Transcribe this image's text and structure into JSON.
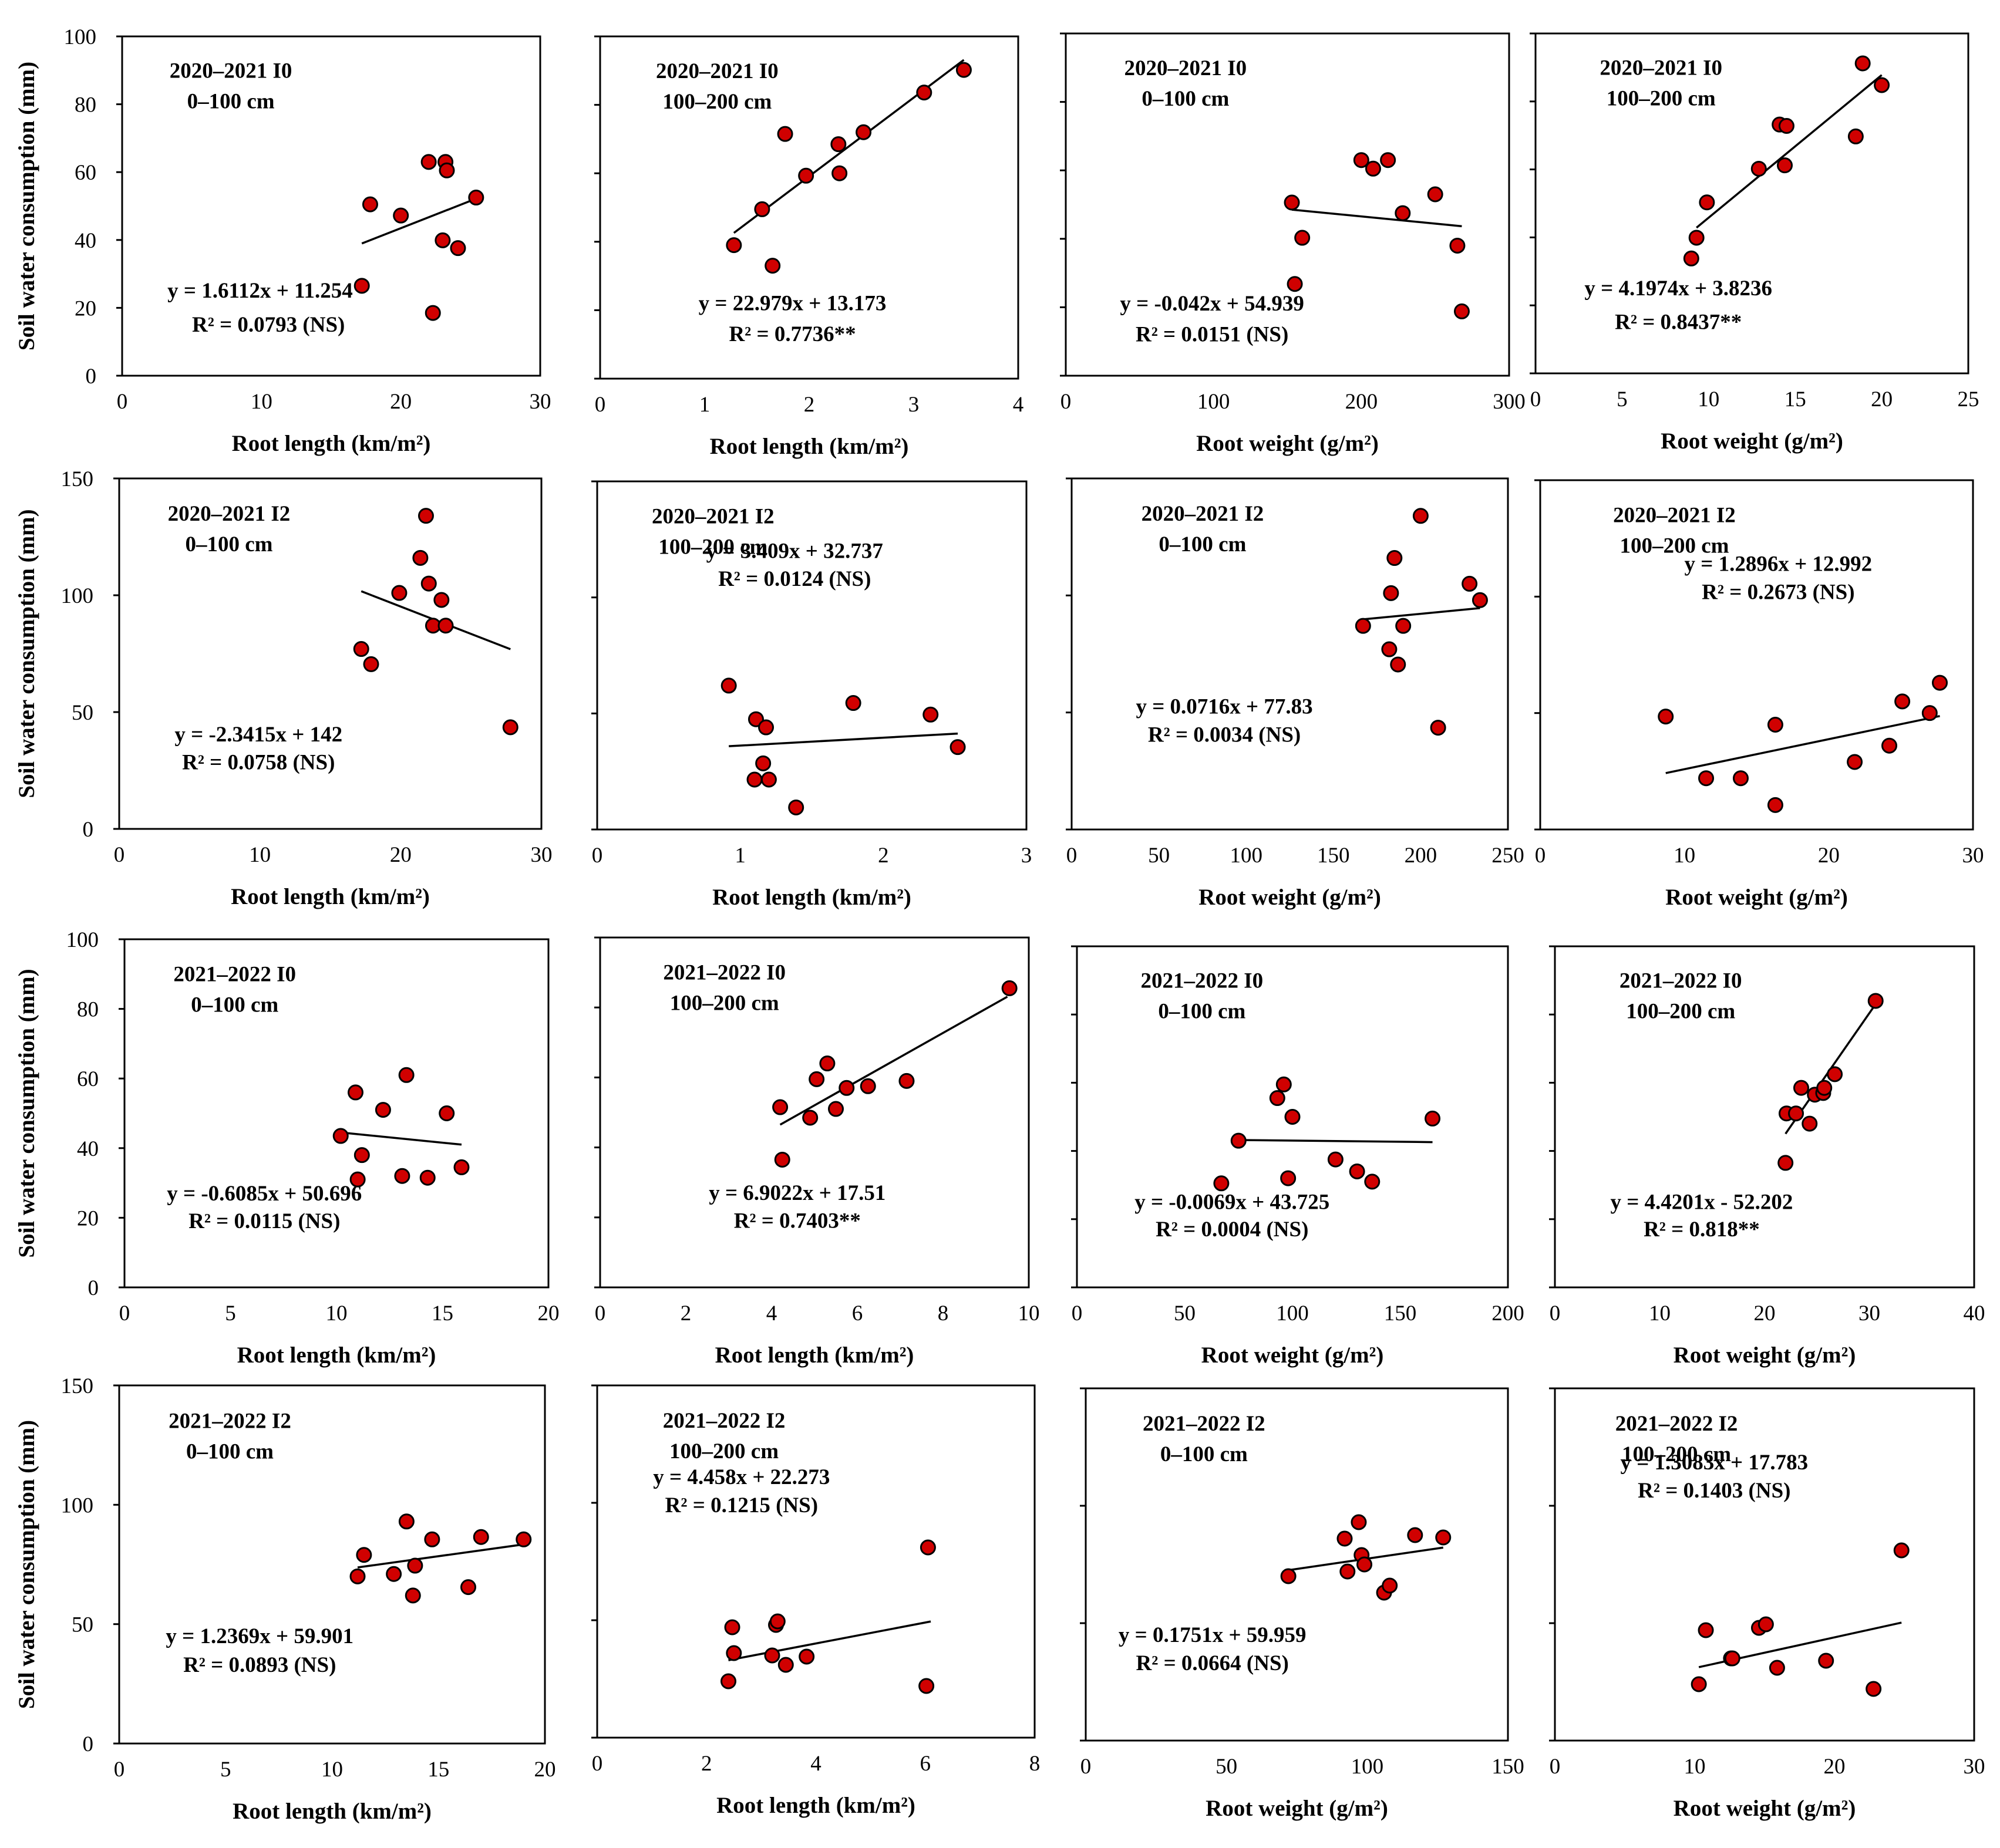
{
  "figure": {
    "ylabel": "Soil water consumption  (mm)",
    "colors": {
      "point_fill": "#d00000",
      "point_stroke": "#000000",
      "line": "#000000",
      "frame": "#000000"
    }
  },
  "chart_data": [
    {
      "type": "scatter",
      "title": "2020–2021  I0",
      "subtitle": "0–100 cm",
      "xlabel": "Root length (km/m²)",
      "xlim": [
        0,
        30
      ],
      "xticks": [
        0,
        10,
        20,
        30
      ],
      "ylim": [
        0,
        100
      ],
      "yticks": [
        0,
        20,
        40,
        60,
        80,
        100
      ],
      "show_y_tick_labels": true,
      "x": [
        17.2,
        17.8,
        20.0,
        22.0,
        22.3,
        23.0,
        23.2,
        23.3,
        24.1,
        25.4
      ],
      "y": [
        26.5,
        50.5,
        47.2,
        63.0,
        18.5,
        39.9,
        63.0,
        60.5,
        37.6,
        52.5
      ],
      "equation": "y = 1.6112x + 11.254",
      "r2": "R² = 0.0793 (NS)",
      "slope": 1.6112,
      "intercept": 11.254,
      "fit_range": [
        17.2,
        25.4
      ]
    },
    {
      "type": "scatter",
      "title": "2020–2021  I0",
      "subtitle": "100–200 cm",
      "xlabel": "Root length (km/m²)",
      "xlim": [
        0,
        4
      ],
      "xticks": [
        0,
        1,
        2,
        3,
        4
      ],
      "ylim": [
        0,
        100
      ],
      "yticks": [
        0,
        20,
        40,
        60,
        80,
        100
      ],
      "show_y_tick_labels": false,
      "x": [
        1.28,
        1.55,
        1.65,
        1.77,
        1.97,
        2.28,
        2.29,
        2.52,
        3.1,
        3.48
      ],
      "y": [
        39.0,
        49.5,
        33.0,
        71.5,
        59.3,
        68.5,
        60.0,
        72.0,
        83.6,
        90.2
      ],
      "equation": "y = 22.979x + 13.173",
      "r2": "R² = 0.7736**",
      "slope": 22.979,
      "intercept": 13.173,
      "fit_range": [
        1.28,
        3.48
      ]
    },
    {
      "type": "scatter",
      "title": "2020–2021  I0",
      "subtitle": "0–100 cm",
      "xlabel": "Root weight (g/m²)",
      "xlim": [
        0,
        300
      ],
      "xticks": [
        0,
        100,
        200,
        300
      ],
      "ylim": [
        0,
        100
      ],
      "yticks": [
        0,
        20,
        40,
        60,
        80,
        100
      ],
      "show_y_tick_labels": false,
      "x": [
        153,
        155,
        160,
        200,
        208,
        218,
        228,
        250,
        265,
        268
      ],
      "y": [
        50.6,
        26.8,
        40.3,
        63.0,
        60.5,
        63.0,
        47.5,
        53.0,
        38.0,
        18.8
      ],
      "equation": "y = -0.042x + 54.939",
      "r2": "R² = 0.0151 (NS)",
      "slope": -0.042,
      "intercept": 54.939,
      "fit_range": [
        153,
        268
      ]
    },
    {
      "type": "scatter",
      "title": "2020–2021  I0",
      "subtitle": "100–200 cm",
      "xlabel": "Root weight (g/m²)",
      "xlim": [
        0,
        25
      ],
      "xticks": [
        0,
        5,
        10,
        15,
        20,
        25
      ],
      "ylim": [
        0,
        100
      ],
      "yticks": [
        0,
        20,
        40,
        60,
        80,
        100
      ],
      "show_y_tick_labels": false,
      "x": [
        9.0,
        9.3,
        9.9,
        12.9,
        14.1,
        14.4,
        14.5,
        18.5,
        18.9,
        20.0
      ],
      "y": [
        33.8,
        39.9,
        50.3,
        60.2,
        73.2,
        61.2,
        72.8,
        69.7,
        91.2,
        84.8
      ],
      "equation": "y = 4.1974x + 3.8236",
      "r2": "R² = 0.8437**",
      "slope": 4.1974,
      "intercept": 3.8236,
      "fit_range": [
        9.3,
        20.0
      ]
    },
    {
      "type": "scatter",
      "title": "2020–2021  I2",
      "subtitle": "0–100 cm",
      "xlabel": "Root length (km/m²)",
      "xlim": [
        0,
        30
      ],
      "xticks": [
        0,
        10,
        20,
        30
      ],
      "ylim": [
        0,
        150
      ],
      "yticks": [
        0,
        50,
        100,
        150
      ],
      "show_y_tick_labels": true,
      "x": [
        17.2,
        17.9,
        19.9,
        21.4,
        21.8,
        22.0,
        22.3,
        22.9,
        23.2,
        27.8
      ],
      "y": [
        77.0,
        70.5,
        101.0,
        116.0,
        134.0,
        105.0,
        87.0,
        98.0,
        87.0,
        43.5
      ],
      "equation": "y = -2.3415x + 142",
      "r2": "R² = 0.0758 (NS)",
      "slope": -2.3415,
      "intercept": 142,
      "fit_range": [
        17.2,
        27.8
      ]
    },
    {
      "type": "scatter",
      "title": "2020–2021  I2",
      "subtitle": "100–200 cm",
      "xlabel": "Root length (km/m²)",
      "xlim": [
        0,
        3
      ],
      "xticks": [
        0,
        1,
        2,
        3
      ],
      "ylim": [
        0,
        150
      ],
      "yticks": [
        0,
        50,
        100,
        150
      ],
      "show_y_tick_labels": false,
      "x": [
        0.92,
        1.1,
        1.11,
        1.16,
        1.18,
        1.2,
        1.39,
        1.79,
        2.33,
        2.52
      ],
      "y": [
        62.0,
        21.5,
        47.5,
        28.5,
        44.0,
        21.5,
        9.5,
        54.5,
        49.5,
        35.5
      ],
      "equation": "y = 3.409x + 32.737",
      "r2": "R² = 0.0124 (NS)",
      "slope": 3.409,
      "intercept": 32.737,
      "fit_range": [
        0.92,
        2.52
      ]
    },
    {
      "type": "scatter",
      "title": "2020–2021  I2",
      "subtitle": "0–100 cm",
      "xlabel": "Root weight (g/m²)",
      "xlim": [
        0,
        250
      ],
      "xticks": [
        0,
        50,
        100,
        150,
        200,
        250
      ],
      "ylim": [
        0,
        150
      ],
      "yticks": [
        0,
        50,
        100,
        150
      ],
      "show_y_tick_labels": false,
      "x": [
        167,
        182,
        183,
        185,
        187,
        190,
        200,
        210,
        228,
        234
      ],
      "y": [
        87.0,
        77.0,
        101.0,
        116.0,
        70.5,
        87.0,
        134.0,
        43.5,
        105.0,
        98.0
      ],
      "equation": "y = 0.0716x + 77.83",
      "r2": "R² = 0.0034 (NS)",
      "slope": 0.0716,
      "intercept": 77.83,
      "fit_range": [
        167,
        234
      ]
    },
    {
      "type": "scatter",
      "title": "2020–2021  I2",
      "subtitle": "100–200 cm",
      "xlabel": "Root weight (g/m²)",
      "xlim": [
        0,
        30
      ],
      "xticks": [
        0,
        10,
        20,
        30
      ],
      "ylim": [
        0,
        150
      ],
      "yticks": [
        0,
        50,
        100,
        150
      ],
      "show_y_tick_labels": false,
      "x": [
        8.7,
        11.5,
        13.9,
        16.3,
        16.3,
        21.8,
        24.2,
        25.1,
        27.0,
        27.7
      ],
      "y": [
        48.5,
        22.0,
        22.0,
        45.0,
        10.5,
        29.0,
        36.0,
        55.0,
        50.0,
        63.0
      ],
      "equation": "y = 1.2896x + 12.992",
      "r2": "R² = 0.2673 (NS)",
      "slope": 1.2896,
      "intercept": 12.992,
      "fit_range": [
        8.7,
        27.7
      ]
    },
    {
      "type": "scatter",
      "title": "2021–2022  I0",
      "subtitle": "0–100 cm",
      "xlabel": "Root length (km/m²)",
      "xlim": [
        0,
        20
      ],
      "xticks": [
        0,
        5,
        10,
        15,
        20
      ],
      "ylim": [
        0,
        100
      ],
      "yticks": [
        0,
        20,
        40,
        60,
        80,
        100
      ],
      "show_y_tick_labels": true,
      "x": [
        10.2,
        10.9,
        11.0,
        11.2,
        12.2,
        13.1,
        13.3,
        14.3,
        15.2,
        15.9
      ],
      "y": [
        43.5,
        56.0,
        31.0,
        38.0,
        51.0,
        32.0,
        61.0,
        31.5,
        50.0,
        34.5
      ],
      "equation": "y = -0.6085x + 50.696",
      "r2": "R² = 0.0115 (NS)",
      "slope": -0.6085,
      "intercept": 50.696,
      "fit_range": [
        10.2,
        15.9
      ]
    },
    {
      "type": "scatter",
      "title": "2021–2022  I0",
      "subtitle": "100–200 cm",
      "xlabel": "Root length (km/m²)",
      "xlim": [
        0,
        10
      ],
      "xticks": [
        0,
        2,
        4,
        6,
        8,
        10
      ],
      "ylim": [
        0,
        100
      ],
      "yticks": [
        0,
        20,
        40,
        60,
        80,
        100
      ],
      "show_y_tick_labels": false,
      "x": [
        4.2,
        4.25,
        4.9,
        5.05,
        5.3,
        5.5,
        5.75,
        6.25,
        7.15,
        9.55
      ],
      "y": [
        51.5,
        36.5,
        48.5,
        59.5,
        64.0,
        51.0,
        57.0,
        57.5,
        59.0,
        85.5
      ],
      "equation": "y = 6.9022x + 17.51",
      "r2": "R² = 0.7403**",
      "slope": 6.9022,
      "intercept": 17.51,
      "fit_range": [
        4.2,
        9.5
      ]
    },
    {
      "type": "scatter",
      "title": "2021–2022  I0",
      "subtitle": "0–100 cm",
      "xlabel": "Root weight (g/m²)",
      "xlim": [
        0,
        200
      ],
      "xticks": [
        0,
        50,
        100,
        150,
        200
      ],
      "ylim": [
        0,
        100
      ],
      "yticks": [
        0,
        20,
        40,
        60,
        80,
        100
      ],
      "show_y_tick_labels": false,
      "x": [
        67,
        75,
        93,
        96,
        98,
        100,
        120,
        130,
        137,
        165
      ],
      "y": [
        30.5,
        43.0,
        55.5,
        59.5,
        32.0,
        50.0,
        37.5,
        34.0,
        31.0,
        49.5
      ],
      "equation": "y = -0.0069x + 43.725",
      "r2": "R² = 0.0004 (NS)",
      "slope": -0.0069,
      "intercept": 43.725,
      "fit_range": [
        75,
        165
      ]
    },
    {
      "type": "scatter",
      "title": "2021–2022  I0",
      "subtitle": "100–200 cm",
      "xlabel": "Root weight (g/m²)",
      "xlim": [
        0,
        40
      ],
      "xticks": [
        0,
        10,
        20,
        30,
        40
      ],
      "ylim": [
        0,
        100
      ],
      "yticks": [
        0,
        20,
        40,
        60,
        80,
        100
      ],
      "show_y_tick_labels": false,
      "x": [
        22.0,
        22.1,
        23.0,
        23.5,
        24.3,
        24.8,
        25.6,
        25.7,
        26.7,
        30.6
      ],
      "y": [
        36.5,
        51.0,
        51.0,
        58.5,
        48.0,
        56.5,
        57.0,
        58.5,
        62.5,
        84.0
      ],
      "equation": "y = 4.4201x - 52.202",
      "r2": "R² = 0.818**",
      "slope": 4.4201,
      "intercept": -52.202,
      "fit_range": [
        22.0,
        30.6
      ]
    },
    {
      "type": "scatter",
      "title": "2021–2022  I2",
      "subtitle": "0–100 cm",
      "xlabel": "Root length (km/m²)",
      "xlim": [
        0,
        20
      ],
      "xticks": [
        0,
        5,
        10,
        15,
        20
      ],
      "ylim": [
        0,
        150
      ],
      "yticks": [
        0,
        50,
        100,
        150
      ],
      "show_y_tick_labels": true,
      "x": [
        11.2,
        11.5,
        12.9,
        13.5,
        13.8,
        13.9,
        14.7,
        16.4,
        17.0,
        19.0
      ],
      "y": [
        70.0,
        79.0,
        71.0,
        93.0,
        62.0,
        74.5,
        85.5,
        65.5,
        86.5,
        85.5
      ],
      "equation": "y = 1.2369x + 59.901",
      "r2": "R² = 0.0893 (NS)",
      "slope": 1.2369,
      "intercept": 59.901,
      "fit_range": [
        11.2,
        19.0
      ]
    },
    {
      "type": "scatter",
      "title": "2021–2022  I2",
      "subtitle": "100–200 cm",
      "xlabel": "Root length (km/m²)",
      "xlim": [
        0,
        8
      ],
      "xticks": [
        0,
        2,
        4,
        6,
        8
      ],
      "ylim": [
        0,
        150
      ],
      "yticks": [
        0,
        50,
        100,
        150
      ],
      "show_y_tick_labels": false,
      "x": [
        2.4,
        2.47,
        2.5,
        3.2,
        3.27,
        3.3,
        3.45,
        3.83,
        6.02,
        6.05
      ],
      "y": [
        24.0,
        47.0,
        36.0,
        35.0,
        48.0,
        49.5,
        31.0,
        34.5,
        22.0,
        81.0
      ],
      "equation": "y = 4.458x + 22.273",
      "r2": "R² = 0.1215 (NS)",
      "slope": 4.458,
      "intercept": 22.273,
      "fit_range": [
        2.4,
        6.1
      ]
    },
    {
      "type": "scatter",
      "title": "2021–2022  I2",
      "subtitle": "0–100 cm",
      "xlabel": "Root weight (g/m²)",
      "xlim": [
        0,
        150
      ],
      "xticks": [
        0,
        50,
        100,
        150
      ],
      "ylim": [
        0,
        150
      ],
      "yticks": [
        0,
        50,
        100,
        150
      ],
      "show_y_tick_labels": false,
      "x": [
        72,
        92,
        93,
        97,
        98,
        99,
        106,
        108,
        117,
        127
      ],
      "y": [
        70.0,
        86.0,
        72.0,
        93.0,
        79.0,
        75.0,
        63.0,
        66.0,
        87.5,
        86.5
      ],
      "equation": "y = 0.1751x + 59.959",
      "r2": "R² = 0.0664 (NS)",
      "slope": 0.1751,
      "intercept": 59.959,
      "fit_range": [
        72,
        127
      ]
    },
    {
      "type": "scatter",
      "title": "2021–2022  I2",
      "subtitle": "100–200 cm",
      "xlabel": "Root weight (g/m²)",
      "xlim": [
        0,
        30
      ],
      "xticks": [
        0,
        10,
        20,
        30
      ],
      "ylim": [
        0,
        150
      ],
      "yticks": [
        0,
        50,
        100,
        150
      ],
      "show_y_tick_labels": false,
      "x": [
        10.3,
        10.8,
        12.6,
        12.7,
        14.6,
        15.1,
        15.9,
        19.4,
        22.8,
        24.8
      ],
      "y": [
        24.0,
        47.0,
        35.0,
        35.0,
        48.0,
        49.5,
        31.0,
        34.0,
        22.0,
        81.0
      ],
      "equation": "y = 1.3083x + 17.783",
      "r2": "R² = 0.1403 (NS)",
      "slope": 1.3083,
      "intercept": 17.783,
      "fit_range": [
        10.3,
        24.8
      ]
    }
  ]
}
